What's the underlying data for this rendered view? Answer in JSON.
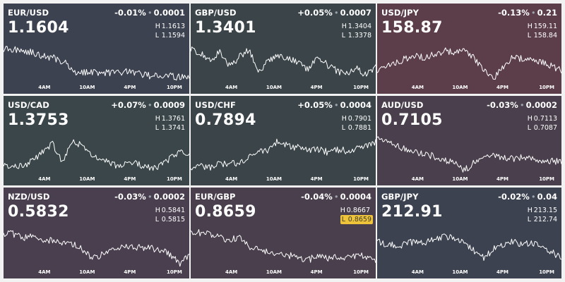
{
  "time_labels": [
    "4AM",
    "10AM",
    "4PM",
    "10PM"
  ],
  "tiles": [
    {
      "pair": "EUR/USD",
      "change_pct": "-0.01%",
      "change_abs": "0.0001",
      "price": "1.1604",
      "high_label": "H",
      "high": "1.1613",
      "low_label": "L",
      "low": "1.1594",
      "color": "#3c4250",
      "trend": [
        0.8,
        0.78,
        0.74,
        0.65,
        0.6,
        0.48,
        0.24,
        0.28,
        0.26,
        0.24,
        0.28,
        0.22,
        0.18,
        0.2,
        0.16,
        0.14
      ],
      "flag": ""
    },
    {
      "pair": "GBP/USD",
      "change_pct": "+0.05%",
      "change_abs": "0.0007",
      "price": "1.3401",
      "high_label": "H",
      "high": "1.3404",
      "low_label": "L",
      "low": "1.3378",
      "color": "#3a4449",
      "trend": [
        0.8,
        0.7,
        0.55,
        0.72,
        0.4,
        0.62,
        0.78,
        0.3,
        0.52,
        0.66,
        0.6,
        0.48,
        0.32,
        0.58,
        0.44,
        0.3,
        0.22,
        0.36,
        0.2,
        0.4
      ],
      "flag": ""
    },
    {
      "pair": "USD/JPY",
      "change_pct": "-0.13%",
      "change_abs": "0.21",
      "price": "158.87",
      "high_label": "H",
      "high": "159.11",
      "low_label": "L",
      "low": "158.84",
      "color": "#5c3e4a",
      "trend": [
        0.3,
        0.4,
        0.5,
        0.58,
        0.64,
        0.6,
        0.68,
        0.76,
        0.7,
        0.82,
        0.58,
        0.3,
        0.12,
        0.4,
        0.6,
        0.58,
        0.55,
        0.5,
        0.42,
        0.3
      ],
      "flag": ""
    },
    {
      "pair": "USD/CAD",
      "change_pct": "+0.07%",
      "change_abs": "0.0009",
      "price": "1.3753",
      "high_label": "H",
      "high": "1.3761",
      "low_label": "L",
      "low": "1.3741",
      "color": "#3a4649",
      "trend": [
        0.25,
        0.22,
        0.2,
        0.35,
        0.55,
        0.75,
        0.3,
        0.82,
        0.7,
        0.48,
        0.4,
        0.28,
        0.2,
        0.3,
        0.24,
        0.18,
        0.22,
        0.4,
        0.55,
        0.5
      ],
      "flag": ""
    },
    {
      "pair": "USD/CHF",
      "change_pct": "+0.05%",
      "change_abs": "0.0004",
      "price": "0.7894",
      "high_label": "H",
      "high": "0.7901",
      "low_label": "L",
      "low": "0.7881",
      "color": "#3a4449",
      "trend": [
        0.18,
        0.22,
        0.2,
        0.26,
        0.3,
        0.28,
        0.42,
        0.55,
        0.6,
        0.82,
        0.68,
        0.65,
        0.58,
        0.62,
        0.55,
        0.6,
        0.58,
        0.64,
        0.7,
        0.78
      ],
      "flag": ""
    },
    {
      "pair": "AUD/USD",
      "change_pct": "-0.03%",
      "change_abs": "0.0002",
      "price": "0.7105",
      "high_label": "H",
      "high": "0.7113",
      "low_label": "L",
      "low": "0.7087",
      "color": "#4a3f4c",
      "trend": [
        0.9,
        0.78,
        0.7,
        0.6,
        0.55,
        0.5,
        0.44,
        0.36,
        0.28,
        0.12,
        0.3,
        0.4,
        0.48,
        0.42,
        0.38,
        0.44,
        0.4,
        0.32,
        0.35,
        0.3
      ],
      "flag": ""
    },
    {
      "pair": "NZD/USD",
      "change_pct": "-0.03%",
      "change_abs": "0.0002",
      "price": "0.5832",
      "high_label": "H",
      "high": "0.5841",
      "low_label": "L",
      "low": "0.5815",
      "color": "#4a3f4f",
      "trend": [
        0.8,
        0.78,
        0.7,
        0.72,
        0.66,
        0.62,
        0.58,
        0.55,
        0.45,
        0.22,
        0.3,
        0.42,
        0.5,
        0.52,
        0.46,
        0.48,
        0.4,
        0.34,
        0.12,
        0.3
      ],
      "flag": ""
    },
    {
      "pair": "EUR/GBP",
      "change_pct": "-0.04%",
      "change_abs": "0.0004",
      "price": "0.8659",
      "high_label": "H",
      "high": "0.8667",
      "low_label": "L",
      "low": "0.8659",
      "color": "#4a3f4c",
      "trend": [
        0.84,
        0.8,
        0.76,
        0.7,
        0.62,
        0.72,
        0.5,
        0.44,
        0.38,
        0.34,
        0.3,
        0.24,
        0.2,
        0.26,
        0.22,
        0.28,
        0.24,
        0.3,
        0.26,
        0.2
      ],
      "flag": "low"
    },
    {
      "pair": "GBP/JPY",
      "change_pct": "-0.02%",
      "change_abs": "0.04",
      "price": "212.91",
      "high_label": "H",
      "high": "213.15",
      "low_label": "L",
      "low": "212.74",
      "color": "#3c4250",
      "trend": [
        0.6,
        0.55,
        0.5,
        0.56,
        0.62,
        0.58,
        0.66,
        0.72,
        0.68,
        0.6,
        0.4,
        0.24,
        0.45,
        0.52,
        0.6,
        0.55,
        0.58,
        0.5,
        0.38,
        0.22
      ],
      "flag": ""
    }
  ]
}
